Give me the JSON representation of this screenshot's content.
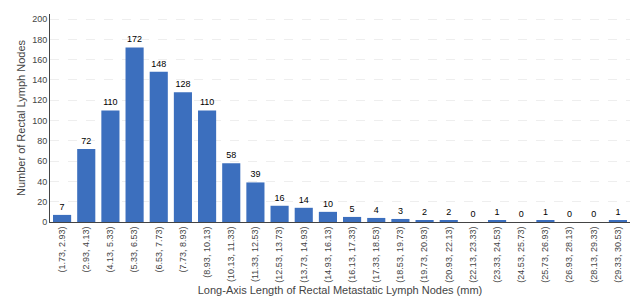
{
  "chart_data": {
    "type": "bar",
    "categories": [
      "(1.73, 2.93)",
      "(2.93, 4.13)",
      "(4.13, 5.33)",
      "(5.33, 6.53)",
      "(6.53, 7.73)",
      "(7.73, 8.93)",
      "(8.93, 10.13)",
      "(10.13, 11.33)",
      "(11.33, 12.53)",
      "(12.53, 13.73)",
      "(13.73, 14.93)",
      "(14.93, 16.13)",
      "(16.13, 17.33)",
      "(17.33, 18.53)",
      "(18.53, 19.73)",
      "(19.73, 20.93)",
      "(20.93, 22.13)",
      "(22.13, 23.33)",
      "(23.33, 24.53)",
      "(24.53, 25.73)",
      "(25.73, 26.93)",
      "(26.93, 28.13)",
      "(28.13, 29.33)",
      "(29.33, 30.53)"
    ],
    "values": [
      7,
      72,
      110,
      172,
      148,
      128,
      110,
      58,
      39,
      16,
      14,
      10,
      5,
      4,
      3,
      2,
      2,
      0,
      1,
      0,
      1,
      0,
      0,
      1
    ],
    "color": "#3c6fbe",
    "xlabel": "Long-Axis Length of Rectal Metastatic Lymph Nodes (mm)",
    "ylabel": "Number of Rectal Lymph Nodes",
    "ylim": [
      0,
      205
    ],
    "yticks": [
      0,
      20,
      40,
      60,
      80,
      100,
      120,
      140,
      160,
      180,
      200
    ],
    "grid": true,
    "data_labels": true
  }
}
